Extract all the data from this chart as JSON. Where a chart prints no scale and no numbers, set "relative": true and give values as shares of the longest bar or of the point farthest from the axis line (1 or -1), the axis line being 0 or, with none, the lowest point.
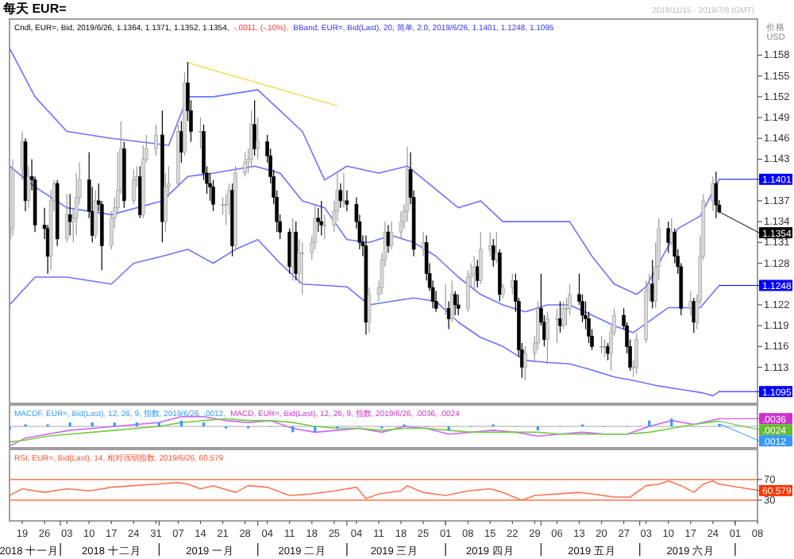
{
  "chart_data": [
    {
      "type": "candlestick",
      "title": "每天 EUR=",
      "subtitle": "2018/11/15 - 2019/7/8 (GMT)",
      "ylabel": "价格\nUSD",
      "tick_labels": "y",
      "annotations": [
        "Cndl, EUR=, Bid, 2019/6/26, 1.1364, 1.1371, 1.1352, 1.1354,",
        "-.0011, (-.10%),",
        "BBand, EUR=, Bid(Last), 20, 简单, 2.0, 2019/6/26, 1.1401, 1.1248, 1.1095",
        {
          "text": "1.1401",
          "x": "2019-06-26",
          "y": 1.1401
        },
        {
          "text": "1.1354",
          "x": "2019-06-26",
          "y": 1.1354
        },
        {
          "text": "1.1248",
          "x": "2019-06-26",
          "y": 1.1248
        },
        {
          "text": "1.1095",
          "x": "2019-06-26",
          "y": 1.1095
        }
      ],
      "xlim": [
        "2018-11-15",
        "2019-07-08"
      ],
      "ylim": [
        1.1078,
        1.1632
      ],
      "yticks": [
        1.113,
        1.116,
        1.119,
        1.122,
        1.128,
        1.131,
        1.134,
        1.137,
        1.143,
        1.146,
        1.149,
        1.152,
        1.155,
        1.158
      ],
      "x": [
        "2018-11-15",
        "2018-11-16",
        "2018-11-19",
        "2018-11-20",
        "2018-11-21",
        "2018-11-22",
        "2018-11-23",
        "2018-11-26",
        "2018-11-27",
        "2018-11-28",
        "2018-11-29",
        "2018-11-30",
        "2018-12-03",
        "2018-12-04",
        "2018-12-05",
        "2018-12-06",
        "2018-12-07",
        "2018-12-10",
        "2018-12-11",
        "2018-12-12",
        "2018-12-13",
        "2018-12-14",
        "2018-12-17",
        "2018-12-18",
        "2018-12-19",
        "2018-12-20",
        "2018-12-21",
        "2018-12-24",
        "2018-12-25",
        "2018-12-26",
        "2018-12-27",
        "2018-12-28",
        "2018-12-31",
        "2019-01-02",
        "2019-01-03",
        "2019-01-04",
        "2019-01-07",
        "2019-01-08",
        "2019-01-09",
        "2019-01-10",
        "2019-01-11",
        "2019-01-14",
        "2019-01-15",
        "2019-01-16",
        "2019-01-17",
        "2019-01-18",
        "2019-01-21",
        "2019-01-22",
        "2019-01-23",
        "2019-01-24",
        "2019-01-25",
        "2019-01-28",
        "2019-01-29",
        "2019-01-30",
        "2019-01-31",
        "2019-02-01",
        "2019-02-04",
        "2019-02-05",
        "2019-02-06",
        "2019-02-07",
        "2019-02-08",
        "2019-02-11",
        "2019-02-12",
        "2019-02-13",
        "2019-02-14",
        "2019-02-15",
        "2019-02-18",
        "2019-02-19",
        "2019-02-20",
        "2019-02-21",
        "2019-02-22",
        "2019-02-25",
        "2019-02-26",
        "2019-02-27",
        "2019-02-28",
        "2019-03-01",
        "2019-03-04",
        "2019-03-05",
        "2019-03-06",
        "2019-03-07",
        "2019-03-08",
        "2019-03-11",
        "2019-03-12",
        "2019-03-13",
        "2019-03-14",
        "2019-03-15",
        "2019-03-18",
        "2019-03-19",
        "2019-03-20",
        "2019-03-21",
        "2019-03-22",
        "2019-03-25",
        "2019-03-26",
        "2019-03-27",
        "2019-03-28",
        "2019-03-29",
        "2019-04-01",
        "2019-04-02",
        "2019-04-03",
        "2019-04-04",
        "2019-04-05",
        "2019-04-08",
        "2019-04-09",
        "2019-04-10",
        "2019-04-11",
        "2019-04-12",
        "2019-04-15",
        "2019-04-16",
        "2019-04-17",
        "2019-04-18",
        "2019-04-19",
        "2019-04-22",
        "2019-04-23",
        "2019-04-24",
        "2019-04-25",
        "2019-04-26",
        "2019-04-29",
        "2019-04-30",
        "2019-05-01",
        "2019-05-02",
        "2019-05-03",
        "2019-05-06",
        "2019-05-07",
        "2019-05-08",
        "2019-05-09",
        "2019-05-10",
        "2019-05-13",
        "2019-05-14",
        "2019-05-15",
        "2019-05-16",
        "2019-05-17",
        "2019-05-20",
        "2019-05-21",
        "2019-05-22",
        "2019-05-23",
        "2019-05-24",
        "2019-05-27",
        "2019-05-28",
        "2019-05-29",
        "2019-05-30",
        "2019-05-31",
        "2019-06-03",
        "2019-06-04",
        "2019-06-05",
        "2019-06-06",
        "2019-06-07",
        "2019-06-10",
        "2019-06-11",
        "2019-06-12",
        "2019-06-13",
        "2019-06-14",
        "2019-06-17",
        "2019-06-18",
        "2019-06-19",
        "2019-06-20",
        "2019-06-21",
        "2019-06-24",
        "2019-06-25",
        "2019-06-26"
      ],
      "ohlc": [
        [
          1.1315,
          1.136,
          1.127,
          1.133
        ],
        [
          1.133,
          1.143,
          1.132,
          1.1415
        ],
        [
          1.1415,
          1.147,
          1.14,
          1.1455
        ],
        [
          1.1455,
          1.146,
          1.1355,
          1.137
        ],
        [
          1.137,
          1.142,
          1.136,
          1.1405
        ],
        [
          1.1405,
          1.143,
          1.1385,
          1.14
        ],
        [
          1.14,
          1.1405,
          1.1325,
          1.1335
        ],
        [
          1.1335,
          1.136,
          1.1315,
          1.133
        ],
        [
          1.133,
          1.1335,
          1.1265,
          1.129
        ],
        [
          1.129,
          1.1385,
          1.127,
          1.137
        ],
        [
          1.137,
          1.14,
          1.1355,
          1.1395
        ],
        [
          1.1395,
          1.14,
          1.1305,
          1.1315
        ],
        [
          1.1315,
          1.138,
          1.131,
          1.135
        ],
        [
          1.135,
          1.138,
          1.132,
          1.134
        ],
        [
          1.134,
          1.136,
          1.131,
          1.1345
        ],
        [
          1.1345,
          1.141,
          1.132,
          1.1375
        ],
        [
          1.1375,
          1.1425,
          1.1365,
          1.14
        ],
        [
          1.14,
          1.144,
          1.1345,
          1.1355
        ],
        [
          1.1355,
          1.139,
          1.131,
          1.132
        ],
        [
          1.132,
          1.1385,
          1.1315,
          1.137
        ],
        [
          1.137,
          1.1395,
          1.1355,
          1.1365
        ],
        [
          1.1365,
          1.137,
          1.127,
          1.1305
        ],
        [
          1.1305,
          1.1355,
          1.13,
          1.1345
        ],
        [
          1.1345,
          1.1375,
          1.133,
          1.136
        ],
        [
          1.136,
          1.144,
          1.135,
          1.1385
        ],
        [
          1.1385,
          1.1485,
          1.138,
          1.1445
        ],
        [
          1.1445,
          1.1455,
          1.136,
          1.137
        ],
        [
          1.137,
          1.1415,
          1.1365,
          1.14
        ],
        [
          1.14,
          1.142,
          1.139,
          1.1405
        ],
        [
          1.1405,
          1.142,
          1.1345,
          1.135
        ],
        [
          1.135,
          1.145,
          1.1345,
          1.143
        ],
        [
          1.143,
          1.1465,
          1.1425,
          1.1445
        ],
        [
          1.1445,
          1.148,
          1.1435,
          1.1465
        ],
        [
          1.1465,
          1.15,
          1.131,
          1.134
        ],
        [
          1.134,
          1.141,
          1.1325,
          1.139
        ],
        [
          1.139,
          1.142,
          1.1375,
          1.1395
        ],
        [
          1.1395,
          1.148,
          1.139,
          1.147
        ],
        [
          1.147,
          1.1485,
          1.1425,
          1.144
        ],
        [
          1.144,
          1.1555,
          1.1435,
          1.154
        ],
        [
          1.154,
          1.157,
          1.1485,
          1.15
        ],
        [
          1.15,
          1.1515,
          1.1455,
          1.147
        ],
        [
          1.147,
          1.149,
          1.1445,
          1.147
        ],
        [
          1.147,
          1.148,
          1.14,
          1.141
        ],
        [
          1.141,
          1.142,
          1.138,
          1.1395
        ],
        [
          1.1395,
          1.141,
          1.137,
          1.139
        ],
        [
          1.139,
          1.14,
          1.1355,
          1.1365
        ],
        [
          1.1365,
          1.1375,
          1.135,
          1.1365
        ],
        [
          1.1365,
          1.138,
          1.1335,
          1.1365
        ],
        [
          1.1365,
          1.1395,
          1.135,
          1.1385
        ],
        [
          1.1385,
          1.1395,
          1.129,
          1.1305
        ],
        [
          1.1305,
          1.142,
          1.13,
          1.141
        ],
        [
          1.141,
          1.144,
          1.1405,
          1.1425
        ],
        [
          1.1425,
          1.1445,
          1.141,
          1.143
        ],
        [
          1.143,
          1.15,
          1.142,
          1.148
        ],
        [
          1.148,
          1.1515,
          1.1435,
          1.1445
        ],
        [
          1.1445,
          1.149,
          1.143,
          1.1455
        ],
        [
          1.1455,
          1.1465,
          1.1425,
          1.1435
        ],
        [
          1.1435,
          1.1445,
          1.1395,
          1.1405
        ],
        [
          1.1405,
          1.1415,
          1.1365,
          1.1375
        ],
        [
          1.1375,
          1.1385,
          1.1325,
          1.134
        ],
        [
          1.134,
          1.135,
          1.1315,
          1.1325
        ],
        [
          1.1325,
          1.133,
          1.1265,
          1.1275
        ],
        [
          1.1275,
          1.1345,
          1.1255,
          1.1325
        ],
        [
          1.1325,
          1.134,
          1.1255,
          1.1265
        ],
        [
          1.1265,
          1.1315,
          1.125,
          1.1295
        ],
        [
          1.1295,
          1.131,
          1.1235,
          1.1295
        ],
        [
          1.1295,
          1.132,
          1.1285,
          1.131
        ],
        [
          1.131,
          1.1365,
          1.13,
          1.1345
        ],
        [
          1.1345,
          1.136,
          1.1325,
          1.134
        ],
        [
          1.134,
          1.137,
          1.132,
          1.1335
        ],
        [
          1.1335,
          1.135,
          1.1315,
          1.1335
        ],
        [
          1.1335,
          1.137,
          1.1325,
          1.1355
        ],
        [
          1.1355,
          1.141,
          1.134,
          1.1385
        ],
        [
          1.1385,
          1.1395,
          1.136,
          1.137
        ],
        [
          1.137,
          1.141,
          1.136,
          1.137
        ],
        [
          1.137,
          1.1385,
          1.1355,
          1.1365
        ],
        [
          1.1365,
          1.1375,
          1.133,
          1.134
        ],
        [
          1.134,
          1.135,
          1.13,
          1.131
        ],
        [
          1.131,
          1.132,
          1.129,
          1.1305
        ],
        [
          1.1305,
          1.132,
          1.1177,
          1.1195
        ],
        [
          1.1195,
          1.1245,
          1.118,
          1.1235
        ],
        [
          1.1235,
          1.1255,
          1.1225,
          1.1245
        ],
        [
          1.1245,
          1.1295,
          1.1235,
          1.1285
        ],
        [
          1.1285,
          1.134,
          1.1275,
          1.1325
        ],
        [
          1.1325,
          1.1335,
          1.1295,
          1.1305
        ],
        [
          1.1305,
          1.134,
          1.13,
          1.1325
        ],
        [
          1.1325,
          1.1355,
          1.1315,
          1.134
        ],
        [
          1.134,
          1.1365,
          1.133,
          1.1355
        ],
        [
          1.1355,
          1.1448,
          1.134,
          1.1415
        ],
        [
          1.1415,
          1.144,
          1.1365,
          1.1375
        ],
        [
          1.1375,
          1.1385,
          1.129,
          1.13
        ],
        [
          1.13,
          1.1325,
          1.129,
          1.131
        ],
        [
          1.131,
          1.132,
          1.1255,
          1.1265
        ],
        [
          1.1265,
          1.128,
          1.124,
          1.1245
        ],
        [
          1.1245,
          1.1255,
          1.1215,
          1.1225
        ],
        [
          1.1225,
          1.124,
          1.121,
          1.1215
        ],
        [
          1.1215,
          1.125,
          1.1205,
          1.1215
        ],
        [
          1.1215,
          1.1225,
          1.1185,
          1.12
        ],
        [
          1.12,
          1.1255,
          1.1195,
          1.1235
        ],
        [
          1.1235,
          1.124,
          1.1205,
          1.122
        ],
        [
          1.122,
          1.1235,
          1.1205,
          1.1215
        ],
        [
          1.1215,
          1.127,
          1.121,
          1.126
        ],
        [
          1.126,
          1.128,
          1.1245,
          1.1265
        ],
        [
          1.1265,
          1.129,
          1.124,
          1.1275
        ],
        [
          1.1275,
          1.1285,
          1.1245,
          1.1255
        ],
        [
          1.1255,
          1.1325,
          1.125,
          1.13
        ],
        [
          1.13,
          1.1325,
          1.129,
          1.1305
        ],
        [
          1.1305,
          1.1315,
          1.1275,
          1.1285
        ],
        [
          1.1285,
          1.1325,
          1.128,
          1.1295
        ],
        [
          1.1295,
          1.13,
          1.1225,
          1.1235
        ],
        [
          1.1235,
          1.125,
          1.123,
          1.1245
        ],
        [
          1.1245,
          1.1265,
          1.1235,
          1.1255
        ],
        [
          1.1255,
          1.1265,
          1.121,
          1.1225
        ],
        [
          1.1225,
          1.123,
          1.1145,
          1.1155
        ],
        [
          1.1155,
          1.1165,
          1.1115,
          1.113
        ],
        [
          1.113,
          1.116,
          1.1111,
          1.115
        ],
        [
          1.115,
          1.1175,
          1.114,
          1.1165
        ],
        [
          1.1165,
          1.1225,
          1.1155,
          1.1215
        ],
        [
          1.1215,
          1.1265,
          1.119,
          1.1195
        ],
        [
          1.1195,
          1.1205,
          1.116,
          1.117
        ],
        [
          1.117,
          1.121,
          1.1135,
          1.12
        ],
        [
          1.12,
          1.1215,
          1.1165,
          1.12
        ],
        [
          1.12,
          1.1225,
          1.118,
          1.119
        ],
        [
          1.119,
          1.1225,
          1.1185,
          1.1215
        ],
        [
          1.1215,
          1.123,
          1.119,
          1.1215
        ],
        [
          1.1215,
          1.125,
          1.1205,
          1.1235
        ],
        [
          1.1235,
          1.1265,
          1.122,
          1.1225
        ],
        [
          1.1225,
          1.1235,
          1.1195,
          1.1205
        ],
        [
          1.1205,
          1.1225,
          1.1185,
          1.12
        ],
        [
          1.12,
          1.121,
          1.1165,
          1.1175
        ],
        [
          1.1175,
          1.1185,
          1.1155,
          1.116
        ],
        [
          1.116,
          1.1175,
          1.115,
          1.116
        ],
        [
          1.116,
          1.117,
          1.1145,
          1.116
        ],
        [
          1.116,
          1.1165,
          1.114,
          1.115
        ],
        [
          1.115,
          1.119,
          1.1125,
          1.118
        ],
        [
          1.118,
          1.1215,
          1.1175,
          1.1205
        ],
        [
          1.1205,
          1.1215,
          1.1185,
          1.119
        ],
        [
          1.119,
          1.1195,
          1.115,
          1.116
        ],
        [
          1.116,
          1.117,
          1.1125,
          1.113
        ],
        [
          1.113,
          1.114,
          1.1116,
          1.113
        ],
        [
          1.113,
          1.118,
          1.112,
          1.117
        ],
        [
          1.117,
          1.1255,
          1.1165,
          1.124
        ],
        [
          1.124,
          1.1265,
          1.1225,
          1.125
        ],
        [
          1.125,
          1.1285,
          1.1215,
          1.1225
        ],
        [
          1.1225,
          1.131,
          1.1215,
          1.1275
        ],
        [
          1.1275,
          1.1345,
          1.1255,
          1.133
        ],
        [
          1.133,
          1.134,
          1.1295,
          1.131
        ],
        [
          1.131,
          1.1345,
          1.1305,
          1.1325
        ],
        [
          1.1325,
          1.133,
          1.128,
          1.129
        ],
        [
          1.129,
          1.13,
          1.1265,
          1.1275
        ],
        [
          1.1275,
          1.128,
          1.1205,
          1.1215
        ],
        [
          1.1215,
          1.124,
          1.1205,
          1.1225
        ],
        [
          1.1225,
          1.123,
          1.118,
          1.1195
        ],
        [
          1.1195,
          1.1235,
          1.1185,
          1.1225
        ],
        [
          1.1225,
          1.132,
          1.122,
          1.129
        ],
        [
          1.129,
          1.138,
          1.1285,
          1.137
        ],
        [
          1.137,
          1.1405,
          1.1355,
          1.1395
        ],
        [
          1.1395,
          1.1412,
          1.1345,
          1.1364
        ],
        [
          1.1364,
          1.1371,
          1.1352,
          1.1354
        ]
      ],
      "series": [
        {
          "type": "line",
          "color": "#7070ff",
          "x": [
            "2018-11-15",
            "2018-11-23",
            "2018-12-03",
            "2018-12-17",
            "2019-01-04",
            "2019-01-10",
            "2019-01-18",
            "2019-02-01",
            "2019-02-08",
            "2019-02-15",
            "2019-02-22",
            "2019-03-01",
            "2019-03-11",
            "2019-03-20",
            "2019-03-28",
            "2019-04-05",
            "2019-04-12",
            "2019-04-19",
            "2019-04-26",
            "2019-05-10",
            "2019-05-17",
            "2019-05-24",
            "2019-05-31",
            "2019-06-03",
            "2019-06-13",
            "2019-06-20",
            "2019-06-26"
          ],
          "values": [
            1.159,
            1.152,
            1.147,
            1.146,
            1.145,
            1.152,
            1.152,
            1.153,
            1.15,
            1.147,
            1.14,
            1.142,
            1.141,
            1.142,
            1.139,
            1.136,
            1.137,
            1.134,
            1.134,
            1.134,
            1.129,
            1.125,
            1.1235,
            1.1246,
            1.133,
            1.1348,
            1.1401
          ]
        },
        {
          "type": "line",
          "color": "#7070ff",
          "x": [
            "2018-11-15",
            "2018-11-23",
            "2018-12-03",
            "2018-12-17",
            "2019-01-02",
            "2019-01-10",
            "2019-01-18",
            "2019-01-31",
            "2019-02-08",
            "2019-02-15",
            "2019-02-22",
            "2019-03-01",
            "2019-03-08",
            "2019-03-15",
            "2019-03-22",
            "2019-03-29",
            "2019-04-05",
            "2019-04-12",
            "2019-04-19",
            "2019-04-26",
            "2019-05-03",
            "2019-05-10",
            "2019-05-17",
            "2019-05-24",
            "2019-05-30",
            "2019-06-10",
            "2019-06-20",
            "2019-06-26"
          ],
          "values": [
            1.142,
            1.139,
            1.136,
            1.135,
            1.137,
            1.1405,
            1.141,
            1.142,
            1.141,
            1.137,
            1.136,
            1.1314,
            1.131,
            1.132,
            1.131,
            1.129,
            1.126,
            1.1235,
            1.122,
            1.121,
            1.122,
            1.122,
            1.1205,
            1.119,
            1.118,
            1.1216,
            1.1216,
            1.1248
          ]
        },
        {
          "type": "line",
          "color": "#7070ff",
          "x": [
            "2018-11-15",
            "2018-11-23",
            "2018-12-03",
            "2018-12-17",
            "2018-12-24",
            "2019-01-02",
            "2019-01-10",
            "2019-01-18",
            "2019-01-25",
            "2019-02-01",
            "2019-02-08",
            "2019-02-15",
            "2019-03-01",
            "2019-03-08",
            "2019-03-15",
            "2019-03-22",
            "2019-03-29",
            "2019-04-05",
            "2019-04-12",
            "2019-04-19",
            "2019-04-26",
            "2019-05-03",
            "2019-05-10",
            "2019-05-17",
            "2019-05-24",
            "2019-05-31",
            "2019-06-07",
            "2019-06-14",
            "2019-06-21",
            "2019-06-24",
            "2019-06-26"
          ],
          "values": [
            1.122,
            1.126,
            1.126,
            1.125,
            1.128,
            1.129,
            1.13,
            1.128,
            1.13,
            1.1314,
            1.128,
            1.125,
            1.1246,
            1.122,
            1.1225,
            1.123,
            1.1225,
            1.1195,
            1.1173,
            1.116,
            1.114,
            1.1137,
            1.1135,
            1.1126,
            1.1116,
            1.111,
            1.1103,
            1.1098,
            1.1093,
            1.1089,
            1.1095
          ]
        },
        {
          "type": "line",
          "color": "#f0e060",
          "x": [
            "2019-01-10",
            "2019-02-26"
          ],
          "values": [
            1.1569,
            1.1507
          ]
        }
      ]
    },
    {
      "type": "line",
      "relative": true,
      "tick_labels": false,
      "annotations": [
        "MACDF, EUR=, Bid(Last), 12, 26, 9, 指数, 2019/6/26, .0012,",
        "MACD, EUR=, Bid(Last), 12, 26, 9, 指数, 2019/6/26, .0036, .0024",
        {
          "text": ".0036",
          "x": "2019-06-26",
          "y": 0.4
        },
        {
          "text": ".0024",
          "x": "2019-06-26",
          "y": 0.27
        },
        {
          "text": ".0012",
          "x": "2019-06-26",
          "y": 0.13
        }
      ],
      "xlim": [
        "2018-11-15",
        "2019-07-08"
      ],
      "x": [
        "2018-11-15",
        "2018-11-20",
        "2018-11-27",
        "2018-12-04",
        "2018-12-11",
        "2018-12-18",
        "2018-12-25",
        "2019-01-01",
        "2019-01-08",
        "2019-01-15",
        "2019-01-22",
        "2019-01-29",
        "2019-02-05",
        "2019-02-12",
        "2019-02-19",
        "2019-02-26",
        "2019-03-05",
        "2019-03-12",
        "2019-03-19",
        "2019-03-26",
        "2019-04-02",
        "2019-04-09",
        "2019-04-16",
        "2019-04-23",
        "2019-04-30",
        "2019-05-07",
        "2019-05-14",
        "2019-05-21",
        "2019-05-28",
        "2019-06-04",
        "2019-06-11",
        "2019-06-18",
        "2019-06-26"
      ],
      "series": [
        {
          "color": "#cc66ff",
          "values": [
            -1.0,
            -0.6,
            -0.4,
            -0.2,
            -0.1,
            0.0,
            0.1,
            0.2,
            0.5,
            0.5,
            0.3,
            0.2,
            0.3,
            -0.1,
            -0.3,
            -0.2,
            -0.1,
            -0.3,
            0.0,
            -0.1,
            -0.4,
            -0.3,
            -0.2,
            -0.3,
            -0.5,
            -0.4,
            -0.3,
            -0.4,
            -0.4,
            0.0,
            0.3,
            0.1,
            0.4
          ]
        },
        {
          "color": "#77cc44",
          "values": [
            -0.8,
            -0.7,
            -0.5,
            -0.4,
            -0.3,
            -0.2,
            -0.1,
            0.0,
            0.2,
            0.3,
            0.4,
            0.3,
            0.3,
            0.2,
            0.0,
            -0.1,
            -0.1,
            -0.2,
            -0.1,
            -0.1,
            -0.2,
            -0.3,
            -0.3,
            -0.3,
            -0.3,
            -0.4,
            -0.4,
            -0.4,
            -0.4,
            -0.3,
            -0.1,
            0.1,
            0.27
          ]
        },
        {
          "type": "bar",
          "color": "#3399ff",
          "values": [
            -0.2,
            0.1,
            0.1,
            0.2,
            0.2,
            0.2,
            0.2,
            0.2,
            0.3,
            0.2,
            -0.1,
            -0.1,
            0.0,
            -0.3,
            -0.3,
            -0.1,
            0.0,
            -0.1,
            0.1,
            0.0,
            -0.2,
            0.0,
            0.1,
            0.0,
            -0.2,
            0.0,
            0.1,
            0.0,
            0.0,
            0.3,
            0.4,
            0.0,
            0.13
          ]
        }
      ]
    },
    {
      "type": "line",
      "xlim": [
        "2018-11-15",
        "2019-07-08"
      ],
      "ylim": [
        -10,
        128
      ],
      "yticks": [
        30,
        70
      ],
      "annotations": [
        "RSI, EUR=, Bid(Last), 14, 相对强弱指数, 2019/6/26, 60.579",
        {
          "text": "60.579",
          "x": "2019-06-26",
          "y": 61
        }
      ],
      "x2lim": [
        "2018-11-15",
        "2019-07-08"
      ],
      "x2ticks": [
        {
          "value": "2018-11-22",
          "label": "2018 十一月"
        },
        {
          "value": "2018-12-01",
          "label": null
        },
        {
          "value": "2018-12-17",
          "label": "2018 十二月"
        },
        {
          "value": "2019-01-01",
          "label": null
        },
        {
          "value": "2019-01-17",
          "label": "2019 一月"
        },
        {
          "value": "2019-02-01",
          "label": null
        },
        {
          "value": "2019-02-15",
          "label": "2019 二月"
        },
        {
          "value": "2019-03-01",
          "label": null
        },
        {
          "value": "2019-03-16",
          "label": "2019 三月"
        },
        {
          "value": "2019-04-01",
          "label": null
        },
        {
          "value": "2019-04-15",
          "label": "2019 四月"
        },
        {
          "value": "2019-05-01",
          "label": null
        },
        {
          "value": "2019-05-17",
          "label": "2019 五月"
        },
        {
          "value": "2019-06-01",
          "label": null
        },
        {
          "value": "2019-06-17",
          "label": "2019 六月"
        },
        {
          "value": "2019-07-01",
          "label": null
        }
      ],
      "xticks": [
        {
          "value": "2018-11-19",
          "label": "19"
        },
        {
          "value": "2018-11-26",
          "label": "26"
        },
        {
          "value": "2018-12-03",
          "label": "03"
        },
        {
          "value": "2018-12-10",
          "label": "10"
        },
        {
          "value": "2018-12-17",
          "label": "17"
        },
        {
          "value": "2018-12-24",
          "label": "24"
        },
        {
          "value": "2018-12-31",
          "label": "31"
        },
        {
          "value": "2019-01-07",
          "label": "07"
        },
        {
          "value": "2019-01-14",
          "label": "14"
        },
        {
          "value": "2019-01-21",
          "label": "21"
        },
        {
          "value": "2019-01-28",
          "label": "28"
        },
        {
          "value": "2019-02-04",
          "label": "04"
        },
        {
          "value": "2019-02-11",
          "label": "11"
        },
        {
          "value": "2019-02-18",
          "label": "18"
        },
        {
          "value": "2019-02-25",
          "label": "25"
        },
        {
          "value": "2019-03-04",
          "label": "04"
        },
        {
          "value": "2019-03-11",
          "label": "11"
        },
        {
          "value": "2019-03-18",
          "label": "18"
        },
        {
          "value": "2019-03-25",
          "label": "25"
        },
        {
          "value": "2019-04-01",
          "label": "01"
        },
        {
          "value": "2019-04-08",
          "label": "08"
        },
        {
          "value": "2019-04-15",
          "label": "15"
        },
        {
          "value": "2019-04-22",
          "label": "22"
        },
        {
          "value": "2019-04-29",
          "label": "29"
        },
        {
          "value": "2019-05-06",
          "label": "06"
        },
        {
          "value": "2019-05-13",
          "label": "13"
        },
        {
          "value": "2019-05-20",
          "label": "20"
        },
        {
          "value": "2019-05-27",
          "label": "27"
        },
        {
          "value": "2019-06-03",
          "label": "03"
        },
        {
          "value": "2019-06-10",
          "label": "10"
        },
        {
          "value": "2019-06-17",
          "label": "17"
        },
        {
          "value": "2019-06-24",
          "label": "24"
        },
        {
          "value": "2019-07-01",
          "label": "01"
        },
        {
          "value": "2019-07-08",
          "label": "08"
        }
      ],
      "ref_lines": [
        {
          "axis": "y",
          "value": 70,
          "color": "#ff8866"
        },
        {
          "axis": "y",
          "value": 30,
          "color": "#ff8866"
        }
      ],
      "series": [
        {
          "color": "#ff7755",
          "x": [
            "2018-11-15",
            "2018-11-19",
            "2018-11-26",
            "2018-12-03",
            "2018-12-10",
            "2018-12-17",
            "2018-12-24",
            "2018-12-31",
            "2019-01-07",
            "2019-01-10",
            "2019-01-14",
            "2019-01-18",
            "2019-01-25",
            "2019-01-29",
            "2019-02-04",
            "2019-02-11",
            "2019-02-18",
            "2019-02-25",
            "2019-03-04",
            "2019-03-07",
            "2019-03-11",
            "2019-03-18",
            "2019-03-20",
            "2019-03-25",
            "2019-04-01",
            "2019-04-08",
            "2019-04-15",
            "2019-04-19",
            "2019-04-25",
            "2019-04-29",
            "2019-05-06",
            "2019-05-13",
            "2019-05-17",
            "2019-05-24",
            "2019-05-29",
            "2019-06-03",
            "2019-06-07",
            "2019-06-10",
            "2019-06-14",
            "2019-06-18",
            "2019-06-21",
            "2019-06-24",
            "2019-06-26"
          ],
          "values": [
            39,
            52,
            45,
            52,
            48,
            55,
            58,
            61,
            64,
            61,
            52,
            58,
            45,
            58,
            55,
            39,
            42,
            48,
            55,
            33,
            42,
            48,
            58,
            45,
            39,
            48,
            52,
            45,
            30,
            39,
            42,
            45,
            42,
            36,
            36,
            58,
            61,
            67,
            58,
            45,
            61,
            67,
            61
          ]
        }
      ]
    }
  ]
}
